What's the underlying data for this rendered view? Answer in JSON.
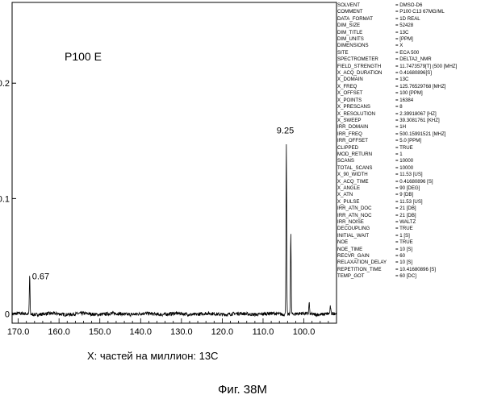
{
  "chart_data": {
    "type": "line",
    "title": "P100 E",
    "xlabel": "X: частей на миллион: 13C",
    "x_tick_labels": [
      "170.0",
      "160.0",
      "150.0",
      "140.0",
      "130.0",
      "120.0",
      "110.0",
      "100.0"
    ],
    "x_ticks": [
      170,
      160,
      150,
      140,
      130,
      120,
      110,
      100
    ],
    "y_tick_labels": [
      "0.2",
      "0.1",
      "0"
    ],
    "y_ticks": [
      0.2,
      0.1,
      0
    ],
    "xlim": [
      171.5,
      92
    ],
    "ylim": [
      -0.008,
      0.27
    ],
    "x_reversed": true,
    "grid": false,
    "annotations": [
      {
        "text": "9.25",
        "x": 104.3,
        "y": 0.153
      },
      {
        "text": "0.67",
        "x": 167.2,
        "y": 0.03
      }
    ],
    "peaks": [
      {
        "x": 167.2,
        "y": 0.034
      },
      {
        "x": 104.3,
        "y": 0.147
      },
      {
        "x": 103.2,
        "y": 0.07
      },
      {
        "x": 98.7,
        "y": 0.01
      },
      {
        "x": 93.5,
        "y": 0.006
      }
    ],
    "line_color": "#000000"
  },
  "parameters": [
    {
      "name": "SOLVENT",
      "value": "= DMSO-D6"
    },
    {
      "name": "COMMENT",
      "value": "= P100 C13 67MG/ML"
    },
    {
      "name": "DATA_FORMAT",
      "value": "= 1D REAL"
    },
    {
      "name": "DIM_SIZE",
      "value": "= 52428"
    },
    {
      "name": "DIM_TITLE",
      "value": "= 13C"
    },
    {
      "name": "DIM_UNITS",
      "value": "= [PPM]"
    },
    {
      "name": "DIMENSIONS",
      "value": "= X"
    },
    {
      "name": "SITE",
      "value": "= ECA 500"
    },
    {
      "name": "SPECTROMETER",
      "value": "= DELTA2_NMR"
    },
    {
      "name": "FIELD_STRENGTH",
      "value": "= 11.7473579[T] (500 [MHZ]"
    },
    {
      "name": "X_ACQ_DURATION",
      "value": "= 0.41680896[S]"
    },
    {
      "name": "X_DOMAIN",
      "value": "= 13C"
    },
    {
      "name": "X_FREQ",
      "value": "= 125.76529768 [MHZ]"
    },
    {
      "name": "X_OFFSET",
      "value": "= 100 [PPM]"
    },
    {
      "name": "X_POINTS",
      "value": "= 16384"
    },
    {
      "name": "X_PRESCANS",
      "value": "= 8"
    },
    {
      "name": "X_RESOLUTION",
      "value": "= 2.39918067 [HZ]"
    },
    {
      "name": "X_SWEEP",
      "value": "= 39.3081761 [KHZ]"
    },
    {
      "name": "IRR_DOMAIN",
      "value": "= 1H"
    },
    {
      "name": "IRR_FREQ",
      "value": "= 500.15991521 [MHZ]"
    },
    {
      "name": "IRR_OFFSET",
      "value": "= 5.0 [PPM]"
    },
    {
      "name": "CLIPPED",
      "value": "= TRUE"
    },
    {
      "name": "MOD_RETURN",
      "value": "= 1"
    },
    {
      "name": "SCANS",
      "value": "= 10000"
    },
    {
      "name": "TOTAL_SCANS",
      "value": "= 10000"
    },
    {
      "name": "X_90_WIDTH",
      "value": "= 11.53 [US]"
    },
    {
      "name": "X_ACQ_TIME",
      "value": "= 0.41680896 [S]"
    },
    {
      "name": "X_ANGLE",
      "value": "= 90 [DEG]"
    },
    {
      "name": "X_ATN",
      "value": "= 9 [DB]"
    },
    {
      "name": "X_PULSE",
      "value": "= 11.53 [US]"
    },
    {
      "name": "IRR_ATN_DOC",
      "value": "= 21 [DB]"
    },
    {
      "name": "IRR_ATN_NOC",
      "value": "= 21 [DB]"
    },
    {
      "name": "IRR_NOISE",
      "value": "= WALTZ"
    },
    {
      "name": "DECOUPLING",
      "value": "= TRUE"
    },
    {
      "name": "INITIAL_WAIT",
      "value": "= 1 [S]"
    },
    {
      "name": "NOE",
      "value": "= TRUE"
    },
    {
      "name": "NOE_TIME",
      "value": "= 10 [S]"
    },
    {
      "name": "RECVR_GAIN",
      "value": "= 60"
    },
    {
      "name": "RELAXATION_DELAY",
      "value": "= 10 [S]"
    },
    {
      "name": "REPETITION_TIME",
      "value": "= 10.41680896 [S]"
    },
    {
      "name": "TEMP_GOT",
      "value": "= 60 [DC]"
    }
  ],
  "caption": "Фиг. 38М"
}
